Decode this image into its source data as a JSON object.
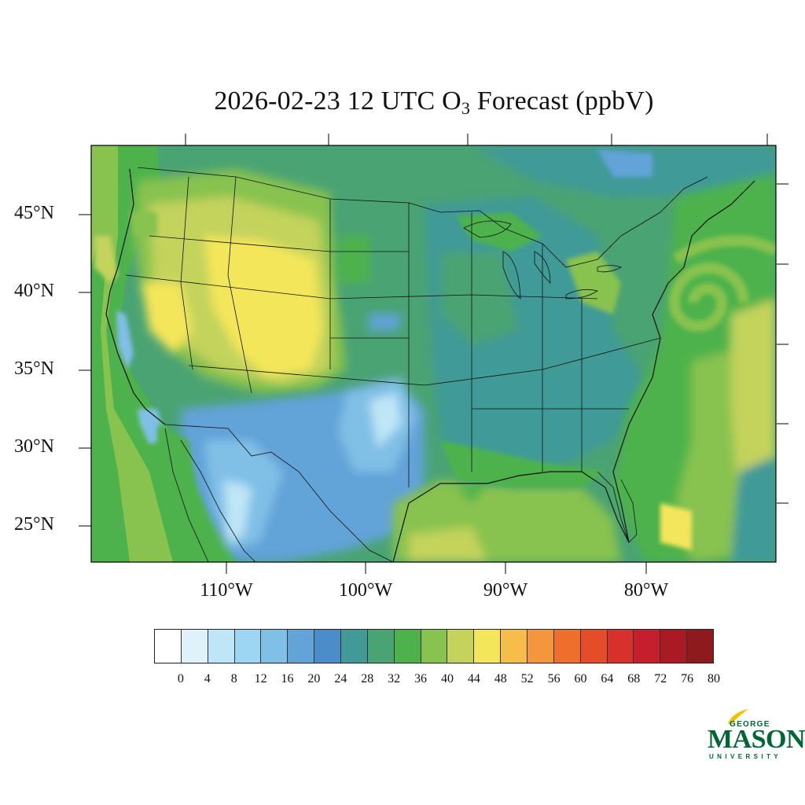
{
  "title": {
    "prefix": "2026-02-23 12 UTC O",
    "subscript": "3",
    "suffix": " Forecast (ppbV)"
  },
  "map": {
    "region": "Contiguous United States",
    "projection": "Lambert conformal",
    "variable": "O3",
    "units": "ppbV",
    "latitude_labels": [
      "45°N",
      "40°N",
      "35°N",
      "30°N",
      "25°N"
    ],
    "longitude_labels": [
      "110°W",
      "100°W",
      "90°W",
      "80°W"
    ],
    "features": [
      "state-boundaries",
      "coastlines",
      "country-boundaries",
      "great-lakes"
    ],
    "ozone_regions": [
      {
        "area": "Rocky Mountains / Intermountain West",
        "level": "44-52"
      },
      {
        "area": "Southern High Plains / West Texas",
        "level": "16-24"
      },
      {
        "area": "Gulf of Mexico",
        "level": "36-44"
      },
      {
        "area": "Midwest / Southeast",
        "level": "28-32"
      },
      {
        "area": "Atlantic swirl off Mid-Atlantic coast",
        "level": "32-44"
      },
      {
        "area": "Baja California / Mexico",
        "level": "8-20"
      }
    ]
  },
  "colorbar": {
    "colors": [
      "#ffffff",
      "#dff2fb",
      "#bfe6f7",
      "#9cd6f2",
      "#80bfe6",
      "#62a3d8",
      "#4b8ccb",
      "#419a98",
      "#4aa373",
      "#4db24c",
      "#88c24f",
      "#c3d35c",
      "#f4e65a",
      "#f6bd4b",
      "#f4963e",
      "#ef6e2c",
      "#e54c2a",
      "#d8312b",
      "#c51f2d",
      "#aa1a25",
      "#8e1a1e"
    ],
    "tick_labels": [
      "0",
      "4",
      "8",
      "12",
      "16",
      "20",
      "24",
      "28",
      "32",
      "36",
      "40",
      "44",
      "48",
      "52",
      "56",
      "60",
      "64",
      "68",
      "72",
      "76",
      "80"
    ]
  },
  "logo": {
    "line1": "GEORGE",
    "line2": "MASON",
    "line3": "UNIVERSITY",
    "color": "#006633",
    "accent": "#f2c200"
  }
}
